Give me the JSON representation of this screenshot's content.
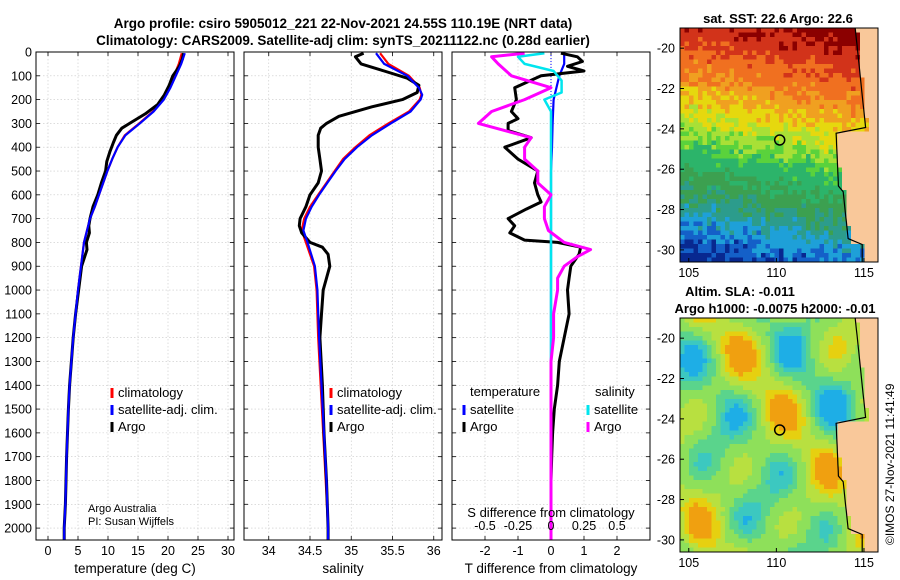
{
  "title": {
    "line1": "Argo profile: csiro 5905012_221 22-Nov-2021 24.55S 110.19E (NRT data)",
    "line2": "Climatology: CARS2009. Satellite-adj clim: synTS_20211122.nc (0.28d earlier)"
  },
  "colors": {
    "climatology": "#ff0000",
    "satellite": "#0000ff",
    "argo": "#000000",
    "t_sat_diff": "#0000ff",
    "s_sat_diff": "#00e5ee",
    "s_argo_diff": "#ff00ff",
    "land": "#f9c89a"
  },
  "depth_axis": {
    "ticks": [
      0,
      100,
      200,
      300,
      400,
      500,
      600,
      700,
      800,
      900,
      1000,
      1100,
      1200,
      1300,
      1400,
      1500,
      1600,
      1700,
      1800,
      1900,
      2000
    ],
    "range": [
      0,
      2050
    ]
  },
  "chart_data": [
    {
      "type": "line",
      "name": "temperature",
      "xlabel": "temperature (deg C)",
      "xlim": [
        -2,
        31
      ],
      "xticks": [
        0,
        5,
        10,
        15,
        20,
        25,
        30
      ],
      "ylim": [
        2050,
        0
      ],
      "legend": [
        "climatology",
        "satellite-adj. clim.",
        "Argo"
      ],
      "note": [
        "Argo Australia",
        "PI: Susan Wijffels"
      ],
      "series": [
        {
          "name": "climatology",
          "depth": [
            5,
            50,
            100,
            150,
            200,
            250,
            300,
            350,
            400,
            450,
            500,
            550,
            600,
            650,
            700,
            750,
            800,
            900,
            1000,
            1100,
            1200,
            1300,
            1400,
            1500,
            1700,
            1900,
            2000,
            2050
          ],
          "values": [
            22.3,
            21.8,
            21.0,
            20.3,
            19.2,
            17.5,
            15.2,
            12.8,
            11.6,
            10.7,
            9.9,
            9.2,
            8.5,
            7.8,
            7.0,
            6.5,
            6.0,
            5.5,
            5.0,
            4.6,
            4.2,
            3.9,
            3.6,
            3.4,
            3.1,
            2.9,
            2.7,
            2.7
          ]
        },
        {
          "name": "satellite-adj. clim.",
          "depth": [
            5,
            50,
            100,
            150,
            200,
            250,
            300,
            350,
            400,
            450,
            500,
            550,
            600,
            650,
            700,
            750,
            800,
            900,
            1000,
            1100,
            1200,
            1300,
            1400,
            1500,
            1700,
            1900,
            2000,
            2050
          ],
          "values": [
            22.8,
            22.2,
            21.3,
            20.4,
            19.3,
            17.6,
            15.3,
            12.9,
            11.6,
            10.7,
            9.9,
            9.2,
            8.5,
            7.8,
            7.0,
            6.5,
            6.0,
            5.5,
            5.0,
            4.6,
            4.2,
            3.9,
            3.6,
            3.4,
            3.1,
            2.9,
            2.7,
            2.7
          ]
        },
        {
          "name": "Argo",
          "depth": [
            5,
            30,
            60,
            100,
            140,
            180,
            220,
            260,
            300,
            320,
            350,
            380,
            420,
            460,
            500,
            550,
            600,
            650,
            700,
            730,
            760,
            800,
            830,
            900,
            1000,
            1100,
            1200,
            1300,
            1400,
            1500,
            1700,
            1900,
            2000,
            2050
          ],
          "values": [
            22.6,
            22.4,
            21.9,
            20.8,
            20.2,
            19.4,
            18.3,
            16.2,
            13.6,
            12.3,
            11.4,
            10.9,
            10.3,
            9.8,
            9.6,
            8.9,
            8.3,
            7.5,
            7.0,
            6.8,
            6.9,
            6.4,
            6.5,
            5.6,
            5.1,
            4.6,
            4.2,
            3.9,
            3.6,
            3.4,
            3.1,
            2.9,
            2.7,
            2.7
          ]
        }
      ]
    },
    {
      "type": "line",
      "name": "salinity",
      "xlabel": "salinity",
      "xlim": [
        33.7,
        36.1
      ],
      "xticks": [
        34,
        34.5,
        35,
        35.5,
        36
      ],
      "xticklabels": [
        "34",
        "34.5",
        "35",
        "35.5",
        "36"
      ],
      "ylim": [
        2050,
        0
      ],
      "legend": [
        "climatology",
        "satellite-adj. clim.",
        "Argo"
      ],
      "series": [
        {
          "name": "climatology",
          "depth": [
            5,
            50,
            100,
            150,
            180,
            200,
            250,
            300,
            350,
            400,
            450,
            500,
            550,
            600,
            650,
            700,
            750,
            800,
            900,
            1000,
            1200,
            1400,
            1600,
            1800,
            2000,
            2050
          ],
          "values": [
            35.35,
            35.45,
            35.7,
            35.83,
            35.85,
            35.83,
            35.7,
            35.45,
            35.22,
            35.05,
            34.9,
            34.8,
            34.7,
            34.6,
            34.5,
            34.43,
            34.4,
            34.45,
            34.55,
            34.58,
            34.6,
            34.63,
            34.66,
            34.69,
            34.72,
            34.72
          ]
        },
        {
          "name": "satellite-adj. clim.",
          "depth": [
            5,
            50,
            100,
            150,
            180,
            200,
            250,
            300,
            350,
            400,
            450,
            500,
            550,
            600,
            650,
            700,
            750,
            800,
            900,
            1000,
            1200,
            1400,
            1600,
            1800,
            2000,
            2050
          ],
          "values": [
            35.3,
            35.4,
            35.68,
            35.82,
            35.86,
            35.84,
            35.72,
            35.48,
            35.25,
            35.07,
            34.92,
            34.81,
            34.71,
            34.61,
            34.52,
            34.45,
            34.42,
            34.47,
            34.56,
            34.59,
            34.61,
            34.64,
            34.67,
            34.7,
            34.72,
            34.72
          ]
        },
        {
          "name": "Argo",
          "depth": [
            5,
            20,
            50,
            80,
            110,
            140,
            170,
            200,
            230,
            270,
            300,
            320,
            350,
            400,
            450,
            500,
            550,
            600,
            650,
            700,
            730,
            760,
            800,
            820,
            850,
            900,
            950,
            1000,
            1100,
            1200,
            1400,
            1600,
            1800,
            2000,
            2050
          ],
          "values": [
            35.15,
            35.05,
            35.12,
            35.4,
            35.68,
            35.82,
            35.8,
            35.62,
            35.25,
            34.85,
            34.7,
            34.63,
            34.6,
            34.6,
            34.62,
            34.64,
            34.6,
            34.5,
            34.45,
            34.38,
            34.37,
            34.4,
            34.5,
            34.65,
            34.72,
            34.74,
            34.7,
            34.66,
            34.64,
            34.62,
            34.65,
            34.67,
            34.7,
            34.72,
            34.72
          ]
        }
      ]
    },
    {
      "type": "line",
      "name": "difference from climatology",
      "xlabel": "T difference from climatology",
      "xlabel_top": "S difference from climatology",
      "xlim": [
        -3,
        3
      ],
      "xticks": [
        -2,
        -1,
        0,
        1,
        2
      ],
      "xticklabels": [
        "-2",
        "-1",
        "0",
        "1",
        "2"
      ],
      "top_ticks": [
        -0.5,
        -0.25,
        0,
        0.25,
        0.5
      ],
      "top_ticklabels": [
        "-0.5",
        "-0.25",
        "0",
        "0.25",
        "0.5"
      ],
      "ylim": [
        2050,
        0
      ],
      "legend_t_title": "temperature",
      "legend_s_title": "salinity",
      "legend_t": [
        "satellite",
        "Argo"
      ],
      "legend_s": [
        "satellite",
        "Argo"
      ],
      "series": [
        {
          "name": "T satellite",
          "depth": [
            5,
            50,
            100,
            200,
            300,
            400,
            500,
            600,
            700,
            800,
            900,
            1000,
            1500,
            2000,
            2050
          ],
          "values": [
            0.4,
            0.4,
            0.25,
            0.08,
            0.05,
            0.03,
            0.0,
            0.0,
            0.0,
            0.0,
            0.0,
            0.0,
            0.0,
            0.0,
            0.0
          ]
        },
        {
          "name": "T Argo",
          "depth": [
            5,
            20,
            40,
            60,
            80,
            100,
            150,
            200,
            250,
            280,
            300,
            330,
            360,
            400,
            450,
            500,
            550,
            600,
            630,
            660,
            700,
            730,
            760,
            790,
            800,
            820,
            850,
            900,
            950,
            1000,
            1100,
            1200,
            1300,
            1400,
            1500,
            1600,
            1700,
            1800,
            1900,
            2000,
            2050
          ],
          "values": [
            0.3,
            0.8,
            0.95,
            0.5,
            1.0,
            -0.3,
            -1.1,
            -1.05,
            -1.2,
            -1.0,
            -1.3,
            -1.3,
            -0.6,
            -1.4,
            -1.0,
            -0.4,
            -0.5,
            -0.4,
            -0.3,
            -0.75,
            -1.3,
            -1.1,
            -1.25,
            -0.8,
            0.2,
            0.9,
            0.85,
            0.6,
            0.55,
            0.5,
            0.55,
            0.4,
            0.25,
            0.2,
            0.1,
            0.05,
            0.02,
            0.0,
            0.0,
            0.0,
            0.0
          ]
        },
        {
          "name": "S satellite",
          "depth": [
            5,
            20,
            50,
            80,
            120,
            170,
            200,
            250,
            300,
            400,
            500,
            600,
            800,
            1000,
            1500,
            2000,
            2050
          ],
          "values": [
            -0.05,
            -0.25,
            -0.2,
            0.02,
            0.08,
            0.08,
            -0.05,
            0.0,
            0.0,
            0.0,
            0.0,
            0.0,
            0.0,
            0.0,
            0.0,
            0.0,
            0.0
          ]
        },
        {
          "name": "S Argo",
          "depth": [
            5,
            20,
            50,
            100,
            150,
            200,
            250,
            300,
            330,
            360,
            400,
            450,
            500,
            550,
            600,
            650,
            700,
            750,
            800,
            830,
            860,
            900,
            950,
            1000,
            1100,
            1200,
            1300,
            1400,
            1500,
            1600,
            1800,
            2000,
            2050
          ],
          "values": [
            -0.2,
            -0.45,
            -0.4,
            -0.3,
            0.0,
            -0.2,
            -0.45,
            -0.55,
            -0.35,
            -0.15,
            -0.2,
            -0.2,
            -0.1,
            -0.1,
            0.0,
            -0.05,
            -0.05,
            -0.02,
            0.1,
            0.3,
            0.2,
            0.1,
            0.05,
            0.05,
            0.02,
            0.02,
            0.0,
            0.0,
            0.0,
            0.0,
            0.0,
            0.0,
            0.0
          ]
        }
      ]
    },
    {
      "type": "heatmap",
      "name": "satellite SST map",
      "title": "sat. SST: 22.6  Argo: 22.6",
      "xlim": [
        104.5,
        115.8
      ],
      "ylim": [
        -30.6,
        -19.0
      ],
      "xticks": [
        105,
        110,
        115
      ],
      "yticks": [
        -20,
        -22,
        -24,
        -26,
        -28,
        -30
      ],
      "marker": {
        "lon": 110.19,
        "lat": -24.55
      }
    },
    {
      "type": "heatmap",
      "name": "altimetry SLA map",
      "title1": "Altim. SLA: -0.011",
      "title2": "Argo h1000: -0.0075 h2000: -0.01",
      "xlim": [
        104.5,
        115.8
      ],
      "ylim": [
        -30.6,
        -19.0
      ],
      "xticks": [
        105,
        110,
        115
      ],
      "yticks": [
        -20,
        -22,
        -24,
        -26,
        -28,
        -30
      ],
      "marker": {
        "lon": 110.19,
        "lat": -24.55
      }
    }
  ],
  "credit": "©IMOS 27-Nov-2021 11:41:49"
}
